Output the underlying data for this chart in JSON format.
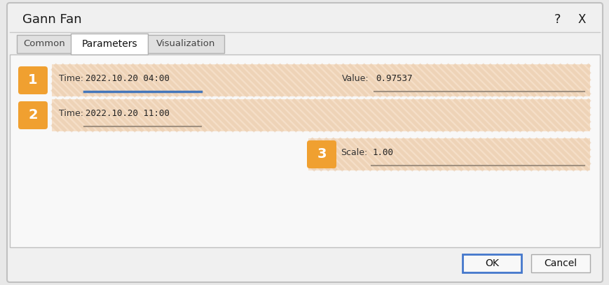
{
  "title": "Gann Fan",
  "tabs": [
    "Common",
    "Parameters",
    "Visualization"
  ],
  "active_tab": "Parameters",
  "bg_color": "#e8e8e8",
  "dialog_bg": "#f0f0f0",
  "content_bg": "#ffffff",
  "stripe_bg": "#f5dfc8",
  "stripe_line_color": "#e8c8a8",
  "orange_badge": "#f0a030",
  "badge_text_color": "#ffffff",
  "input_bg": "#fdf5ec",
  "input_border": "#c8b098",
  "row1_badge": "1",
  "row1_time_label": "Time:",
  "row1_time_value": "2022.10.20 04:00",
  "row1_value_label": "Value:",
  "row1_value_value": "0.97537",
  "row2_badge": "2",
  "row2_time_label": "Time:",
  "row2_time_value": "2022.10.20 11:00",
  "row3_badge": "3",
  "row3_scale_label": "Scale:",
  "row3_scale_value": "1.00",
  "ok_label": "OK",
  "cancel_label": "Cancel",
  "help_label": "?",
  "close_label": "X",
  "active_underline_color": "#4477bb",
  "inactive_underline_color": "#a09080",
  "tab_active_bg": "#ffffff",
  "tab_inactive_bg": "#e0e0e0",
  "tab_border": "#b0b0b0",
  "btn_ok_border": "#4477cc",
  "btn_cancel_border": "#aaaaaa"
}
